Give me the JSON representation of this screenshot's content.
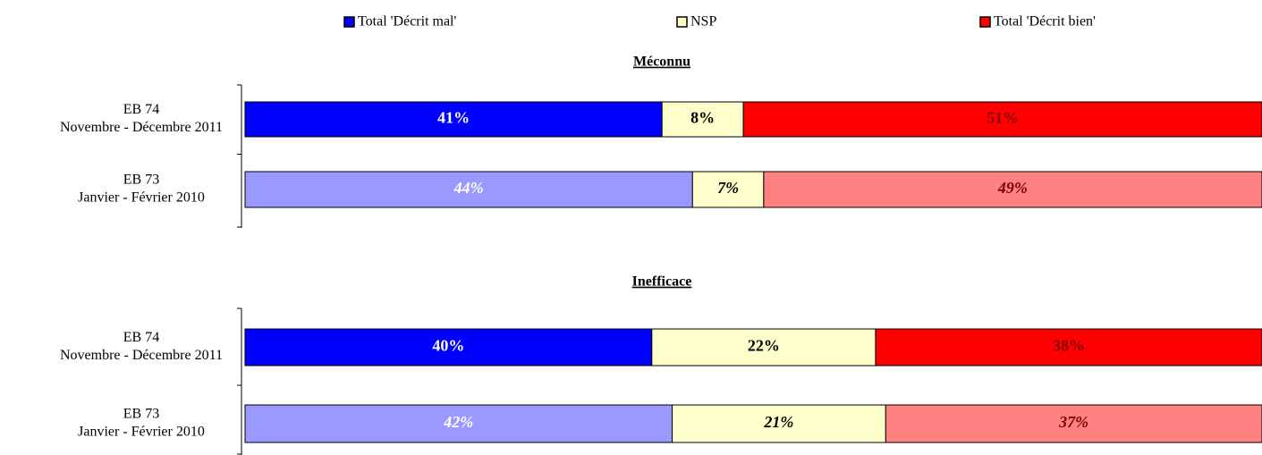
{
  "legend": [
    {
      "name": "Total 'Décrit mal'",
      "color": "#0000ff"
    },
    {
      "name": "NSP",
      "color": "#ffffcc"
    },
    {
      "name": "Total 'Décrit bien'",
      "color": "#ff0000"
    }
  ],
  "chart_data": [
    {
      "type": "stacked-barh",
      "title": "Méconnu",
      "categories": [
        [
          "EB 74",
          "Novembre - Décembre 2011"
        ],
        [
          "EB 73",
          "Janvier - Février 2010"
        ]
      ],
      "xlim": [
        0,
        100
      ],
      "series": [
        {
          "colors": [
            "#0000ff",
            "#9999ff"
          ],
          "values": [
            41,
            44
          ],
          "value_labels": [
            "41%",
            "44%"
          ]
        },
        {
          "colors": [
            "#ffffcc",
            "#ffffcc"
          ],
          "values": [
            8,
            7
          ],
          "value_labels": [
            "8%",
            "7%"
          ]
        },
        {
          "colors": [
            "#ff0000",
            "#ff8080"
          ],
          "values": [
            51,
            49
          ],
          "value_labels": [
            "51%",
            "49%"
          ]
        }
      ]
    },
    {
      "type": "stacked-barh",
      "title": "Inefficace",
      "categories": [
        [
          "EB 74",
          "Novembre - Décembre 2011"
        ],
        [
          "EB 73",
          "Janvier - Février 2010"
        ]
      ],
      "xlim": [
        0,
        100
      ],
      "series": [
        {
          "colors": [
            "#0000ff",
            "#9999ff"
          ],
          "values": [
            40,
            42
          ],
          "value_labels": [
            "40%",
            "42%"
          ]
        },
        {
          "colors": [
            "#ffffcc",
            "#ffffcc"
          ],
          "values": [
            22,
            21
          ],
          "value_labels": [
            "22%",
            "21%"
          ]
        },
        {
          "colors": [
            "#ff0000",
            "#ff8080"
          ],
          "values": [
            38,
            37
          ],
          "value_labels": [
            "38%",
            "37%"
          ]
        }
      ]
    }
  ]
}
